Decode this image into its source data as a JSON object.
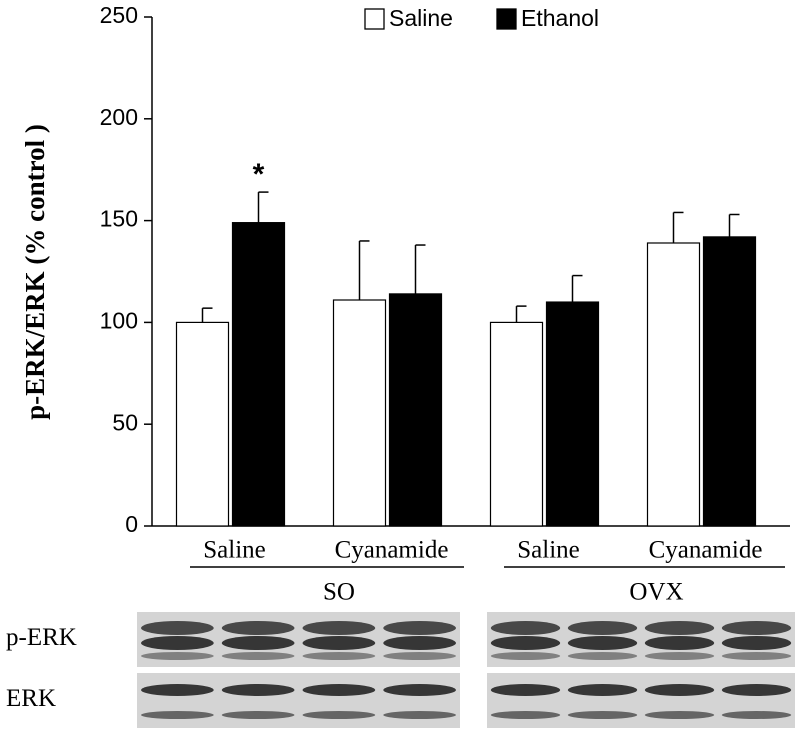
{
  "chart_data": {
    "type": "bar",
    "ylabel": "p-ERK/ERK (% control )",
    "categories": [
      "Saline",
      "Cyanamide",
      "Saline",
      "Cyanamide"
    ],
    "group_labels": [
      "SO",
      "OVX"
    ],
    "series": [
      {
        "name": "Saline",
        "color": "#ffffff",
        "values": [
          100,
          111,
          100,
          139
        ],
        "errors": [
          7,
          29,
          8,
          15
        ]
      },
      {
        "name": "Ethanol",
        "color": "#000000",
        "values": [
          149,
          114,
          110,
          142
        ],
        "errors": [
          15,
          24,
          13,
          11
        ]
      }
    ],
    "annotations": [
      {
        "text": "*",
        "series": 1,
        "category": 0
      }
    ],
    "ylim": [
      0,
      250
    ],
    "yticks": [
      0,
      50,
      100,
      150,
      200,
      250
    ],
    "grid": false,
    "legend": "top"
  },
  "blot": {
    "row_labels": [
      "p-ERK",
      "ERK"
    ]
  }
}
